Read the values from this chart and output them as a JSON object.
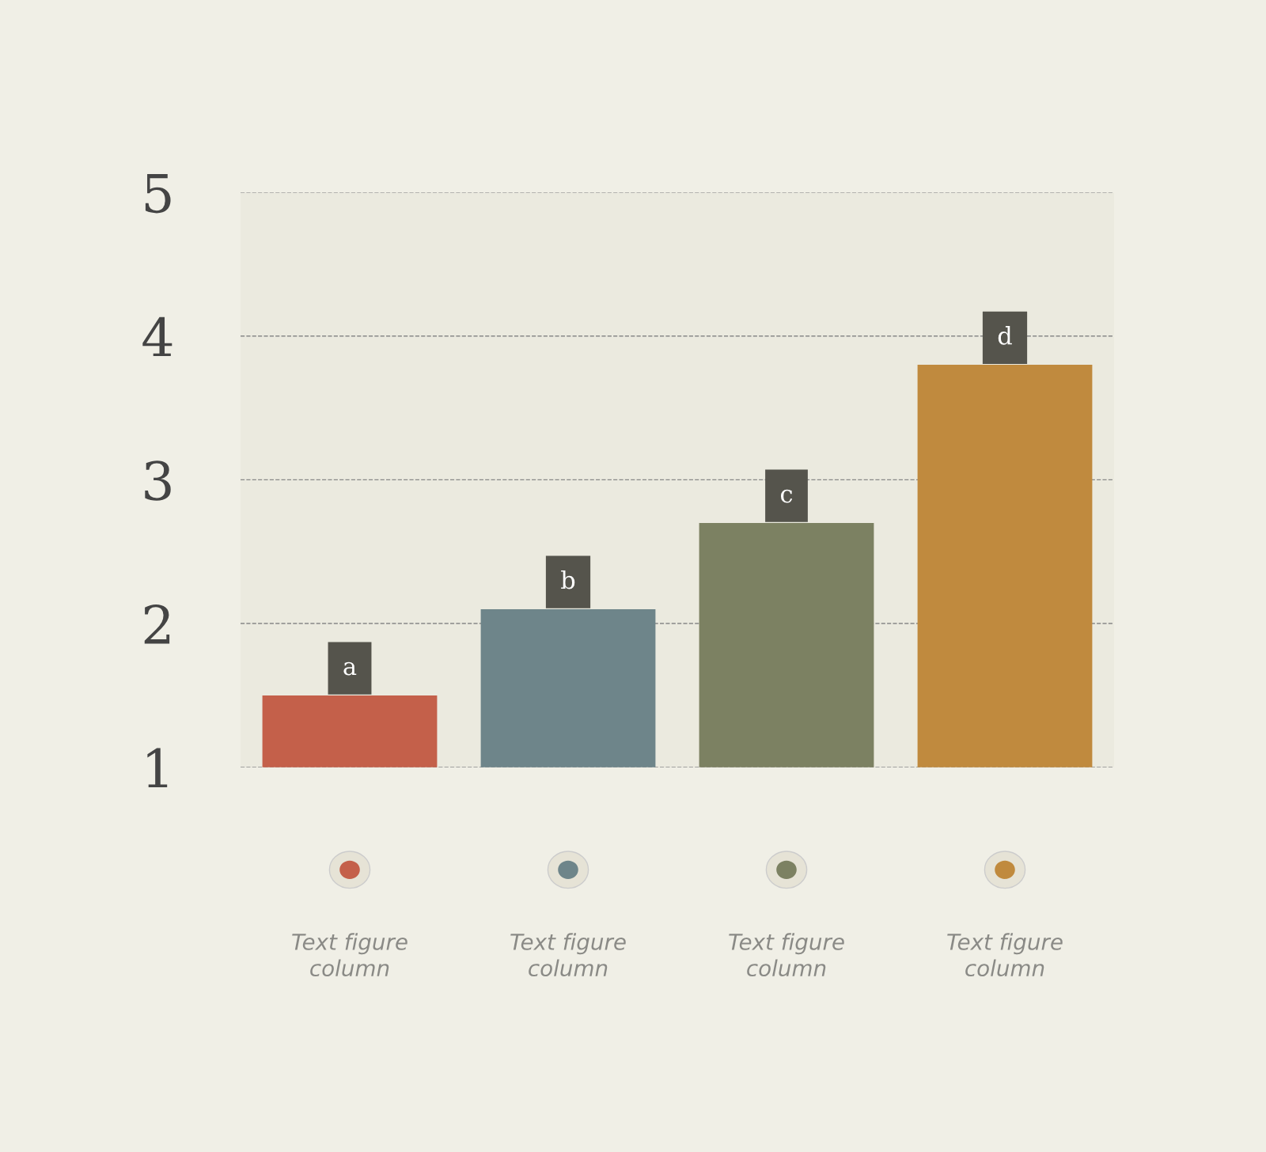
{
  "chart_data": {
    "type": "bar",
    "categories": [
      "Text figure\ncolumn",
      "Text figure\ncolumn",
      "Text figure\ncolumn",
      "Text figure\ncolumn"
    ],
    "values": [
      1.5,
      2.1,
      2.7,
      3.8
    ],
    "colors": [
      "#c4604a",
      "#6e858a",
      "#7c8162",
      "#c08a3e"
    ],
    "value_labels": [
      "a",
      "b",
      "c",
      "d"
    ],
    "ylim": [
      1,
      5
    ],
    "yticks": [
      1,
      2,
      3,
      4,
      5
    ],
    "grid": "y",
    "line_style": "dashed"
  }
}
